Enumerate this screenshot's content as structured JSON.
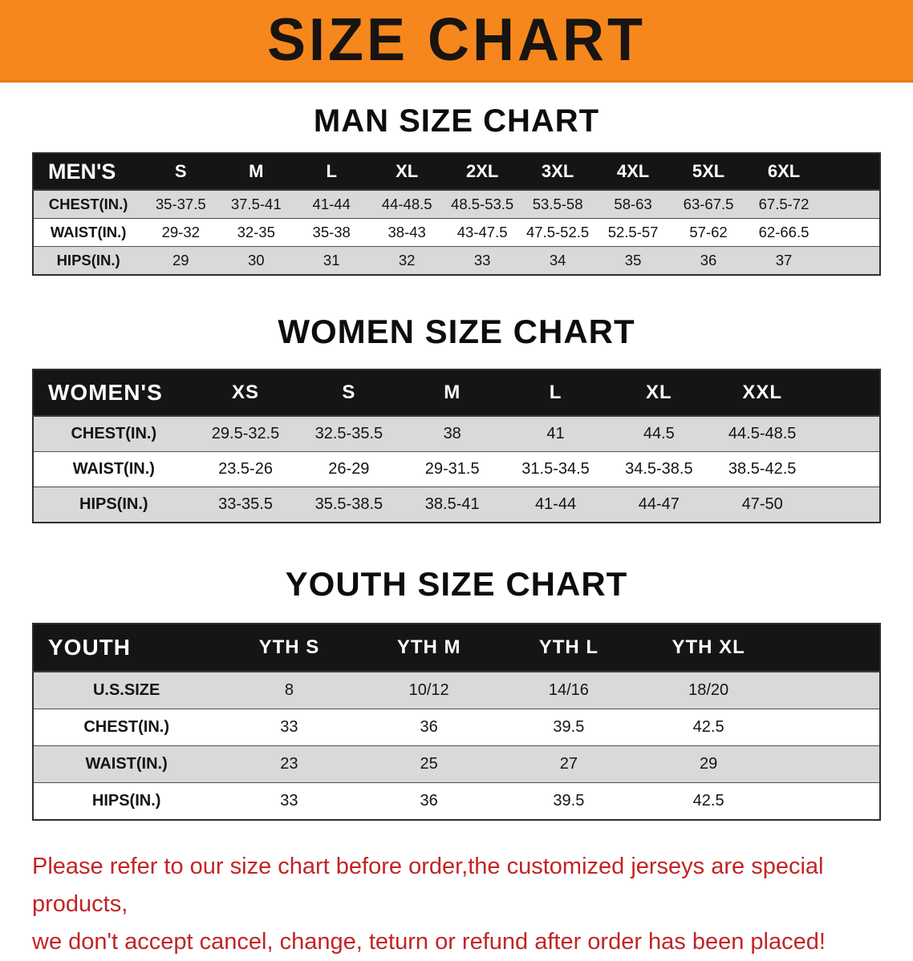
{
  "banner": {
    "title": "SIZE CHART",
    "bg_color": "#f6871d",
    "text_color": "#181411"
  },
  "sections": [
    {
      "id": "men",
      "heading": "MAN SIZE CHART",
      "table": {
        "header": [
          "MEN'S",
          "S",
          "M",
          "L",
          "XL",
          "2XL",
          "3XL",
          "4XL",
          "5XL",
          "6XL"
        ],
        "rows": [
          [
            "CHEST(IN.)",
            "35-37.5",
            "37.5-41",
            "41-44",
            "44-48.5",
            "48.5-53.5",
            "53.5-58",
            "58-63",
            "63-67.5",
            "67.5-72"
          ],
          [
            "WAIST(IN.)",
            "29-32",
            "32-35",
            "35-38",
            "38-43",
            "43-47.5",
            "47.5-52.5",
            "52.5-57",
            "57-62",
            "62-66.5"
          ],
          [
            "HIPS(IN.)",
            "29",
            "30",
            "31",
            "32",
            "33",
            "34",
            "35",
            "36",
            "37"
          ]
        ]
      }
    },
    {
      "id": "women",
      "heading": "WOMEN SIZE CHART",
      "table": {
        "header": [
          "WOMEN'S",
          "XS",
          "S",
          "M",
          "L",
          "XL",
          "XXL"
        ],
        "rows": [
          [
            "CHEST(IN.)",
            "29.5-32.5",
            "32.5-35.5",
            "38",
            "41",
            "44.5",
            "44.5-48.5"
          ],
          [
            "WAIST(IN.)",
            "23.5-26",
            "26-29",
            "29-31.5",
            "31.5-34.5",
            "34.5-38.5",
            "38.5-42.5"
          ],
          [
            "HIPS(IN.)",
            "33-35.5",
            "35.5-38.5",
            "38.5-41",
            "41-44",
            "44-47",
            "47-50"
          ]
        ]
      }
    },
    {
      "id": "youth",
      "heading": "YOUTH SIZE CHART",
      "table": {
        "header": [
          "YOUTH",
          "YTH S",
          "YTH M",
          "YTH L",
          "YTH XL"
        ],
        "rows": [
          [
            "U.S.SIZE",
            "8",
            "10/12",
            "14/16",
            "18/20"
          ],
          [
            "CHEST(IN.)",
            "33",
            "36",
            "39.5",
            "42.5"
          ],
          [
            "WAIST(IN.)",
            "23",
            "25",
            "27",
            "29"
          ],
          [
            "HIPS(IN.)",
            "33",
            "36",
            "39.5",
            "42.5"
          ]
        ]
      }
    }
  ],
  "footer": {
    "line1": "Please refer to our size chart before order,the customized jerseys are special products,",
    "line2": "we don't accept cancel, change, teturn or refund after order has been placed!",
    "text_color": "#c22426"
  }
}
